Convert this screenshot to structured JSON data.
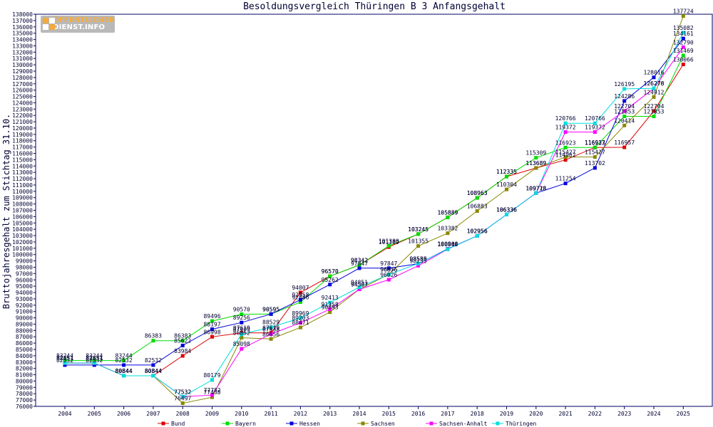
{
  "chart_data": {
    "type": "line",
    "title": "Besoldungsvergleich Thüringen B 3 Anfangsgehalt",
    "xlabel": "",
    "ylabel": "Bruttojahresgehalt zum Stichtag 31.10.",
    "ylim": [
      76000,
      138000
    ],
    "ytick_step": 1000,
    "categories": [
      "2004",
      "2005",
      "2006",
      "2007",
      "2008",
      "2009",
      "2010",
      "2011",
      "2012",
      "2013",
      "2014",
      "2015",
      "2016",
      "2017",
      "2018",
      "2019",
      "2020",
      "2021",
      "2022",
      "2023",
      "2024",
      "2025"
    ],
    "grid": false,
    "legend_position": "bottom",
    "series": [
      {
        "name": "Bund",
        "color": "#dd0000",
        "values": [
          82851,
          82851,
          80844,
          80844,
          83984,
          86998,
          87619,
          87619,
          94007,
          96570,
          98342,
          101189,
          103245,
          105889,
          108963,
          112335,
          113689,
          114962,
          116937,
          116957,
          122704,
          130066
        ]
      },
      {
        "name": "Bayern",
        "color": "#00dd00",
        "values": [
          83244,
          83244,
          83244,
          86383,
          86383,
          89496,
          90570,
          90595,
          92486,
          96570,
          98342,
          101380,
          103245,
          105889,
          108963,
          112335,
          115309,
          116923,
          116923,
          121853,
          121853,
          131469
        ]
      },
      {
        "name": "Hessen",
        "color": "#0000dd",
        "values": [
          82532,
          82532,
          82532,
          82532,
          85622,
          88197,
          89256,
          90595,
          92858,
          95262,
          97847,
          97847,
          98550,
          100906,
          102956,
          106336,
          109728,
          111254,
          113702,
          124286,
          128016,
          134161
        ]
      },
      {
        "name": "Sachsen",
        "color": "#888800",
        "values": [
          82851,
          82851,
          80844,
          80844,
          76497,
          77438,
          86852,
          86656,
          88471,
          90893,
          94507,
          96876,
          101355,
          103382,
          106883,
          110304,
          113689,
          115427,
          115427,
          120414,
          124912,
          137724
        ]
      },
      {
        "name": "Sachsen-Anhalt",
        "color": "#ff00ff",
        "values": [
          82851,
          82851,
          80844,
          80844,
          77532,
          77782,
          85098,
          87438,
          89203,
          91358,
          94507,
          96026,
          98235,
          100848,
          102956,
          106336,
          109718,
          119372,
          119372,
          122704,
          126276,
          132790
        ]
      },
      {
        "name": "Thüringen",
        "color": "#00dddd",
        "values": [
          82851,
          82851,
          80844,
          80844,
          77532,
          80179,
          87409,
          88529,
          89969,
          92413,
          94851,
          96856,
          98585,
          100848,
          102956,
          106336,
          109718,
          120766,
          120766,
          126195,
          126278,
          135082
        ]
      }
    ]
  },
  "logo": {
    "line1": "ÖFFENTLICHER",
    "line2": "DIENST.INFO"
  }
}
